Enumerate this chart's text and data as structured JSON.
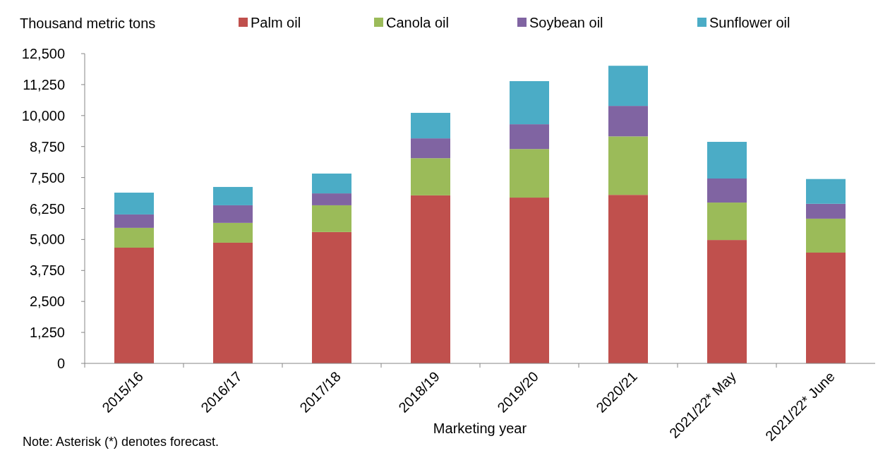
{
  "chart_data": {
    "type": "bar",
    "stacked": true,
    "ylabel": "Thousand metric tons",
    "xlabel": "Marketing year",
    "categories": [
      "2015/16",
      "2016/17",
      "2017/18",
      "2018/19",
      "2019/20",
      "2020/21",
      "2021/22* May",
      "2021/22* June"
    ],
    "series": [
      {
        "name": "Palm oil",
        "color": "#c0504d",
        "values": [
          4670,
          4870,
          5300,
          6780,
          6690,
          6800,
          4980,
          4470
        ]
      },
      {
        "name": "Canola oil",
        "color": "#9bbb59",
        "values": [
          800,
          800,
          1080,
          1500,
          1960,
          2360,
          1510,
          1370
        ]
      },
      {
        "name": "Soybean oil",
        "color": "#8064a2",
        "values": [
          540,
          710,
          480,
          800,
          1000,
          1230,
          970,
          600
        ]
      },
      {
        "name": "Sunflower oil",
        "color": "#4bacc6",
        "values": [
          880,
          740,
          800,
          1030,
          1740,
          1620,
          1480,
          1000
        ]
      }
    ],
    "ylim": [
      0,
      12500
    ],
    "yticks": [
      0,
      {
        "value": 1250,
        "label": "1,250"
      },
      {
        "value": 2500,
        "label": "2,500"
      },
      {
        "value": 3750,
        "label": "3,750"
      },
      {
        "value": 5000,
        "label": "5,000"
      },
      {
        "value": 6250,
        "label": "6,250"
      },
      {
        "value": 7500,
        "label": "7,500"
      },
      {
        "value": 8750,
        "label": "8,750"
      },
      {
        "value": 10000,
        "label": "10,000"
      },
      {
        "value": 11250,
        "label": "11,250"
      },
      {
        "value": 12500,
        "label": "12,500"
      }
    ],
    "grid": false,
    "legend": "top",
    "annotations": [
      "Note: Asterisk (*) denotes forecast."
    ]
  }
}
